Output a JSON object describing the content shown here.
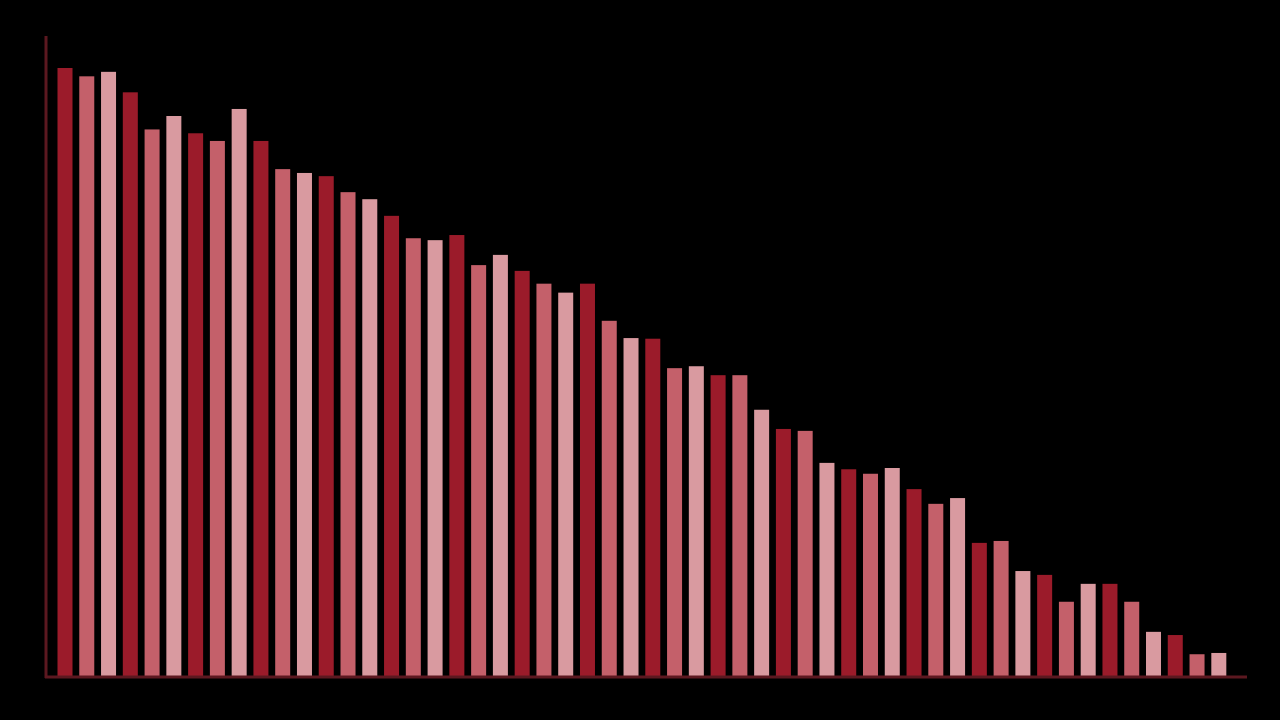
{
  "chart_data": {
    "type": "bar",
    "title": "",
    "xlabel": "",
    "ylabel": "",
    "ylim": [
      0,
      100
    ],
    "grid": false,
    "legend": "none",
    "values": [
      95.0,
      93.7,
      94.4,
      91.2,
      85.4,
      87.5,
      84.8,
      83.6,
      88.6,
      83.6,
      79.2,
      78.6,
      78.1,
      75.6,
      74.5,
      71.9,
      68.4,
      68.1,
      68.9,
      64.2,
      65.8,
      63.3,
      61.3,
      59.9,
      61.3,
      55.5,
      52.8,
      52.7,
      48.1,
      48.4,
      47.0,
      47.0,
      41.6,
      38.6,
      38.3,
      33.3,
      32.3,
      31.6,
      32.5,
      29.2,
      26.9,
      27.8,
      20.8,
      21.1,
      16.4,
      15.8,
      11.6,
      14.4,
      14.4,
      11.6,
      6.9,
      6.4,
      3.4,
      3.6
    ],
    "colors": [
      "#9b1b2a",
      "#c4606a",
      "#d99aa0"
    ],
    "axis_color": "#5c1820",
    "background": "#000000"
  }
}
